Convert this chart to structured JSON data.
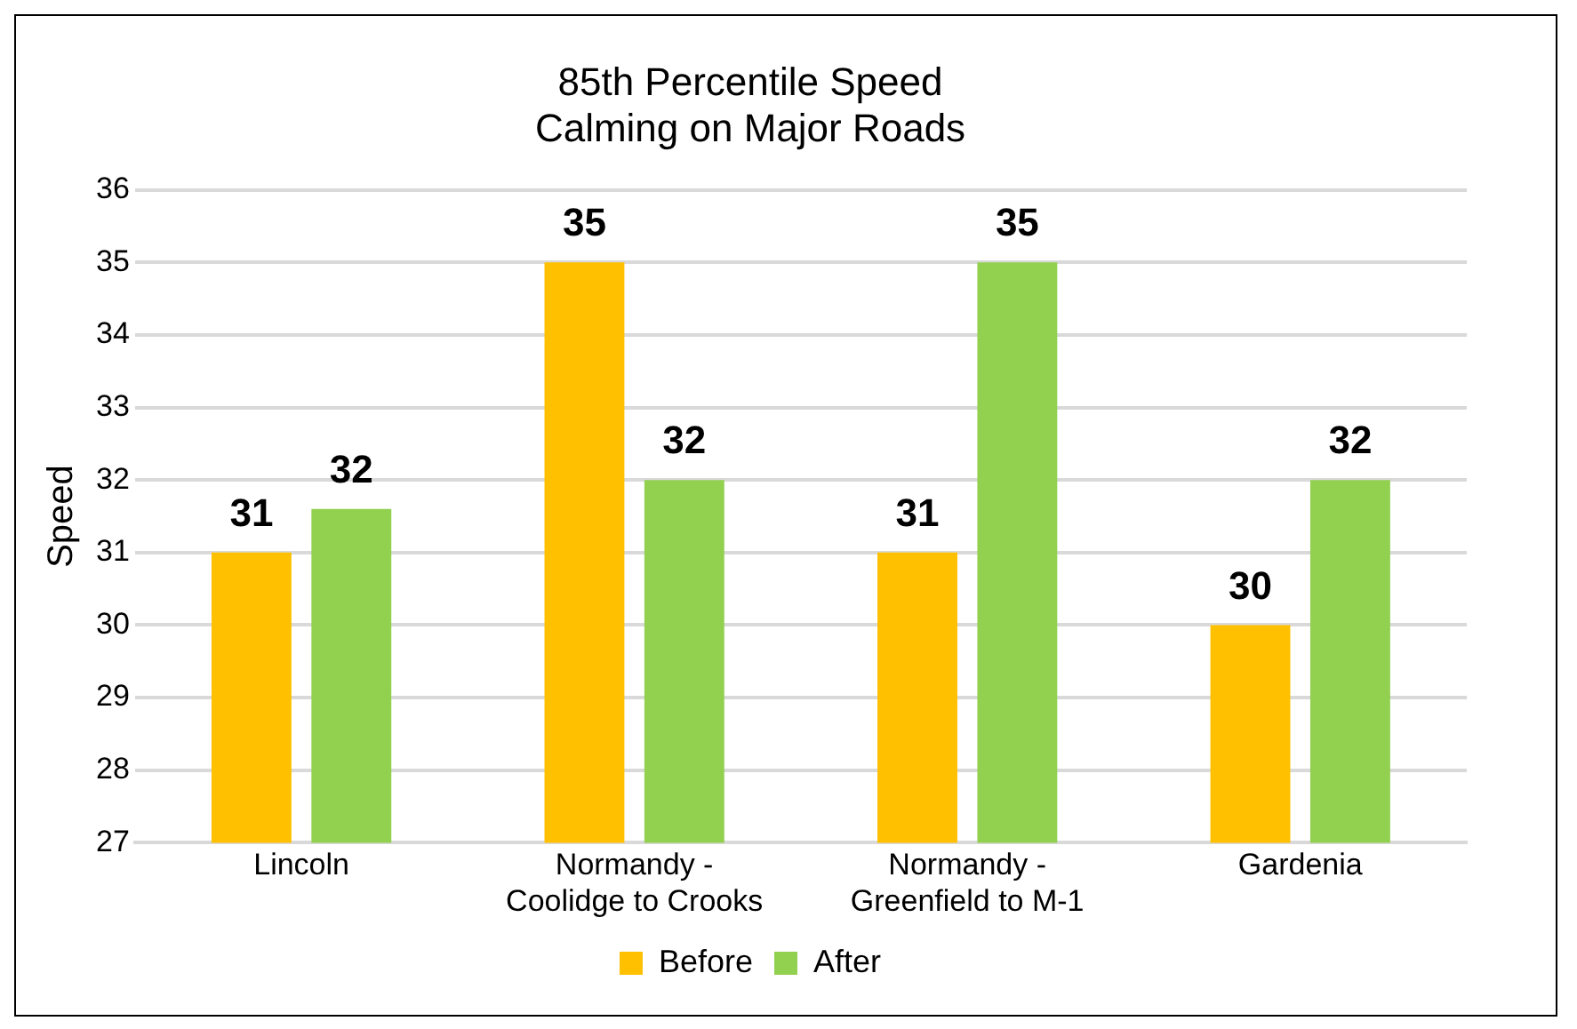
{
  "chart_data": {
    "type": "bar",
    "title": "85th Percentile Speed",
    "subtitle": "Calming on Major Roads",
    "ylabel": "Speed",
    "categories": [
      "Lincoln",
      "Normandy - Coolidge to Crooks",
      "Normandy - Greenfield to M-1",
      "Gardenia"
    ],
    "series": [
      {
        "name": "Before",
        "color": "#ffc000",
        "values": [
          31,
          35,
          31,
          30
        ],
        "value_labels": [
          "31",
          "35",
          "31",
          "30"
        ]
      },
      {
        "name": "After",
        "color": "#92d050",
        "values": [
          31.6,
          32,
          35,
          32
        ],
        "value_labels": [
          "32",
          "32",
          "35",
          "32"
        ]
      }
    ],
    "ylim": [
      27,
      36
    ],
    "yticks": [
      27,
      28,
      29,
      30,
      31,
      32,
      33,
      34,
      35,
      36
    ],
    "grid": "y",
    "legend": "bottom"
  }
}
